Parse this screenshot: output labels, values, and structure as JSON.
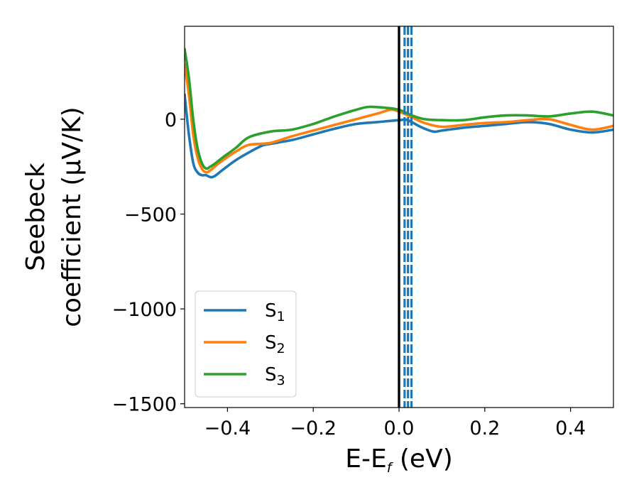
{
  "chart_data": {
    "type": "line",
    "xlabel_main": "E-E",
    "xlabel_sub": "f",
    "xlabel_unit": " (eV)",
    "ylabel_line1": "Seebeck",
    "ylabel_line2": "coefficient  (μV/K)",
    "xlim": [
      -0.5,
      0.5
    ],
    "ylim": [
      -1520,
      490
    ],
    "xticks": [
      -0.4,
      -0.2,
      0.0,
      0.2,
      0.4
    ],
    "xtick_labels": [
      "−0.4",
      "−0.2",
      "0.0",
      "0.2",
      "0.4"
    ],
    "yticks": [
      0,
      -500,
      -1000,
      -1500
    ],
    "ytick_labels": [
      "0",
      "−500",
      "−1000",
      "−1500"
    ],
    "legend_position": "lower-left",
    "reference_line_x": 0.0,
    "dashed_lines_x": [
      0.013,
      0.021,
      0.029
    ],
    "series": [
      {
        "name": "S",
        "sub": "1",
        "color": "#1f77b4",
        "x": [
          -0.5,
          -0.49,
          -0.48,
          -0.47,
          -0.46,
          -0.45,
          -0.44,
          -0.43,
          -0.41,
          -0.38,
          -0.35,
          -0.32,
          -0.3,
          -0.25,
          -0.2,
          -0.15,
          -0.1,
          -0.05,
          0.0,
          0.02,
          0.05,
          0.08,
          0.1,
          0.15,
          0.2,
          0.25,
          0.3,
          0.35,
          0.4,
          0.45,
          0.5
        ],
        "y": [
          130,
          -80,
          -230,
          -280,
          -295,
          -295,
          -305,
          -300,
          -265,
          -215,
          -175,
          -140,
          -130,
          -110,
          -80,
          -50,
          -25,
          -15,
          -5,
          -5,
          -40,
          -65,
          -60,
          -45,
          -35,
          -25,
          -15,
          -25,
          -55,
          -70,
          -55
        ]
      },
      {
        "name": "S",
        "sub": "2",
        "color": "#ff7f0e",
        "x": [
          -0.5,
          -0.49,
          -0.48,
          -0.47,
          -0.46,
          -0.45,
          -0.44,
          -0.43,
          -0.41,
          -0.38,
          -0.35,
          -0.3,
          -0.25,
          -0.2,
          -0.15,
          -0.1,
          -0.05,
          -0.02,
          0.0,
          0.03,
          0.06,
          0.1,
          0.15,
          0.2,
          0.25,
          0.3,
          0.35,
          0.4,
          0.45,
          0.5
        ],
        "y": [
          290,
          130,
          -80,
          -200,
          -260,
          -280,
          -270,
          -250,
          -215,
          -170,
          -135,
          -125,
          -90,
          -60,
          -30,
          0,
          30,
          50,
          40,
          10,
          -20,
          -40,
          -30,
          -20,
          -15,
          -5,
          0,
          -30,
          -55,
          -35
        ]
      },
      {
        "name": "S",
        "sub": "3",
        "color": "#2ca02c",
        "x": [
          -0.5,
          -0.49,
          -0.48,
          -0.47,
          -0.46,
          -0.45,
          -0.44,
          -0.43,
          -0.41,
          -0.38,
          -0.35,
          -0.3,
          -0.25,
          -0.2,
          -0.15,
          -0.1,
          -0.07,
          -0.03,
          0.0,
          0.03,
          0.06,
          0.1,
          0.15,
          0.2,
          0.25,
          0.3,
          0.35,
          0.4,
          0.45,
          0.5
        ],
        "y": [
          370,
          220,
          0,
          -150,
          -230,
          -260,
          -250,
          -235,
          -200,
          -150,
          -95,
          -65,
          -55,
          -25,
          15,
          50,
          65,
          60,
          50,
          20,
          0,
          -5,
          -5,
          10,
          20,
          20,
          15,
          30,
          40,
          20
        ]
      }
    ]
  }
}
